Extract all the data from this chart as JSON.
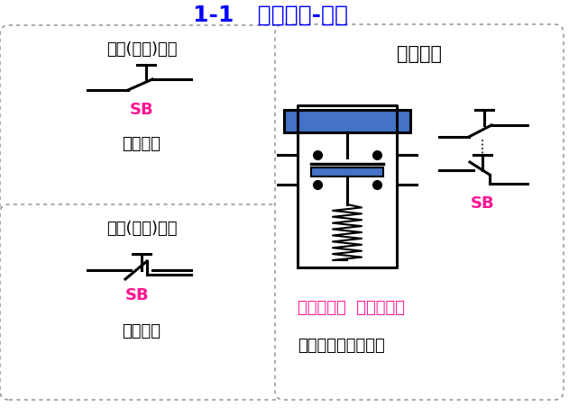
{
  "title": "1-1   控制器件-按钮",
  "title_color": "#0000FF",
  "title_fontsize": 18,
  "bg_color": "#FFFFFF",
  "box_border_color": "#888888",
  "text_color_black": "#000000",
  "text_color_magenta": "#FF1493",
  "text_color_blue": "#0000FF",
  "label_no1": "常开(动合)按钮",
  "label_no2": "SB",
  "label_no3": "电路符号",
  "label_nc1": "常闭(动断)按钮",
  "label_nc2": "SB",
  "label_nc3": "电路符号",
  "label_comp1": "复合按钮",
  "label_comp2": "SB",
  "label_desc1": "复合按钮：  常开按钮和",
  "label_desc2": "常闭按钮做在一起。",
  "button_rect_color": "#4472C4",
  "line_color": "#000000",
  "line_width": 2.2
}
